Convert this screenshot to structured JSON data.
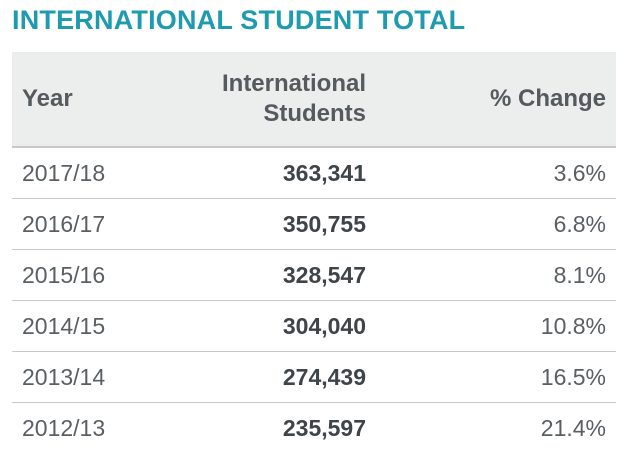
{
  "title": "INTERNATIONAL STUDENT TOTAL",
  "table": {
    "headers": {
      "year": "Year",
      "students_line1": "International",
      "students_line2": "Students",
      "change": "% Change"
    },
    "rows": [
      {
        "year": "2017/18",
        "students": "363,341",
        "change": "3.6%"
      },
      {
        "year": "2016/17",
        "students": "350,755",
        "change": "6.8%"
      },
      {
        "year": "2015/16",
        "students": "328,547",
        "change": "8.1%"
      },
      {
        "year": "2014/15",
        "students": "304,040",
        "change": "10.8%"
      },
      {
        "year": "2013/14",
        "students": "274,439",
        "change": "16.5%"
      },
      {
        "year": "2012/13",
        "students": "235,597",
        "change": "21.4%"
      }
    ]
  },
  "colors": {
    "title": "#1f9bb0",
    "header_bg": "#eceded",
    "divider": "#c8c9ca"
  }
}
